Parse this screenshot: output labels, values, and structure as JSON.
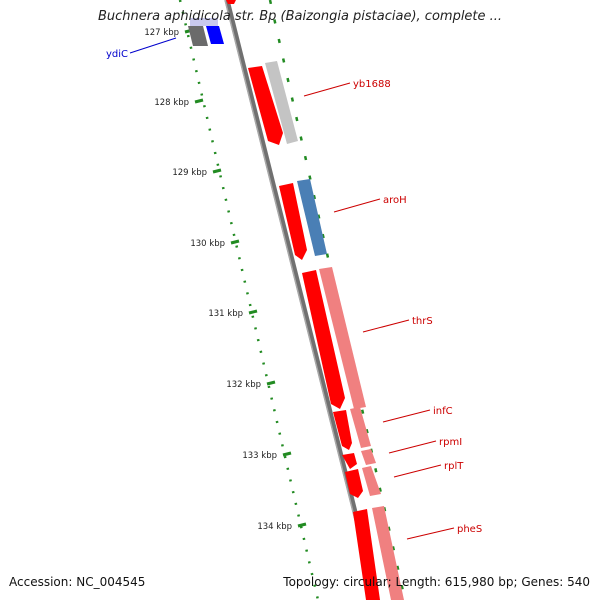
{
  "title": "Buchnera aphidicola str. Bp (Baizongia pistaciae), complete ...",
  "footer": {
    "accession": "Accession: NC_004545",
    "summary": "Topology: circular; Length: 615,980 bp; Genes: 540"
  },
  "ticks": [
    {
      "label": "127 kbp"
    },
    {
      "label": "128 kbp"
    },
    {
      "label": "129 kbp"
    },
    {
      "label": "130 kbp"
    },
    {
      "label": "131 kbp"
    },
    {
      "label": "132 kbp"
    },
    {
      "label": "133 kbp"
    },
    {
      "label": "134 kbp"
    }
  ],
  "genes": [
    {
      "label": "ydiC",
      "color": "#0000cc"
    },
    {
      "label": "yb1688",
      "color": "#cc0000"
    },
    {
      "label": "aroH",
      "color": "#cc0000"
    },
    {
      "label": "thrS",
      "color": "#cc0000"
    },
    {
      "label": "infC",
      "color": "#cc0000"
    },
    {
      "label": "rpmI",
      "color": "#cc0000"
    },
    {
      "label": "rplT",
      "color": "#cc0000"
    },
    {
      "label": "pheS",
      "color": "#cc0000"
    }
  ],
  "colors": {
    "backbone": "#707070",
    "tick_mark": "#228b22",
    "gene_forward": "#ff0000",
    "cog_red": "#f08080",
    "cog_gray": "#bdbdbd",
    "cog_blue": "#4a7fb5",
    "cog_navy": "#0000ff"
  }
}
